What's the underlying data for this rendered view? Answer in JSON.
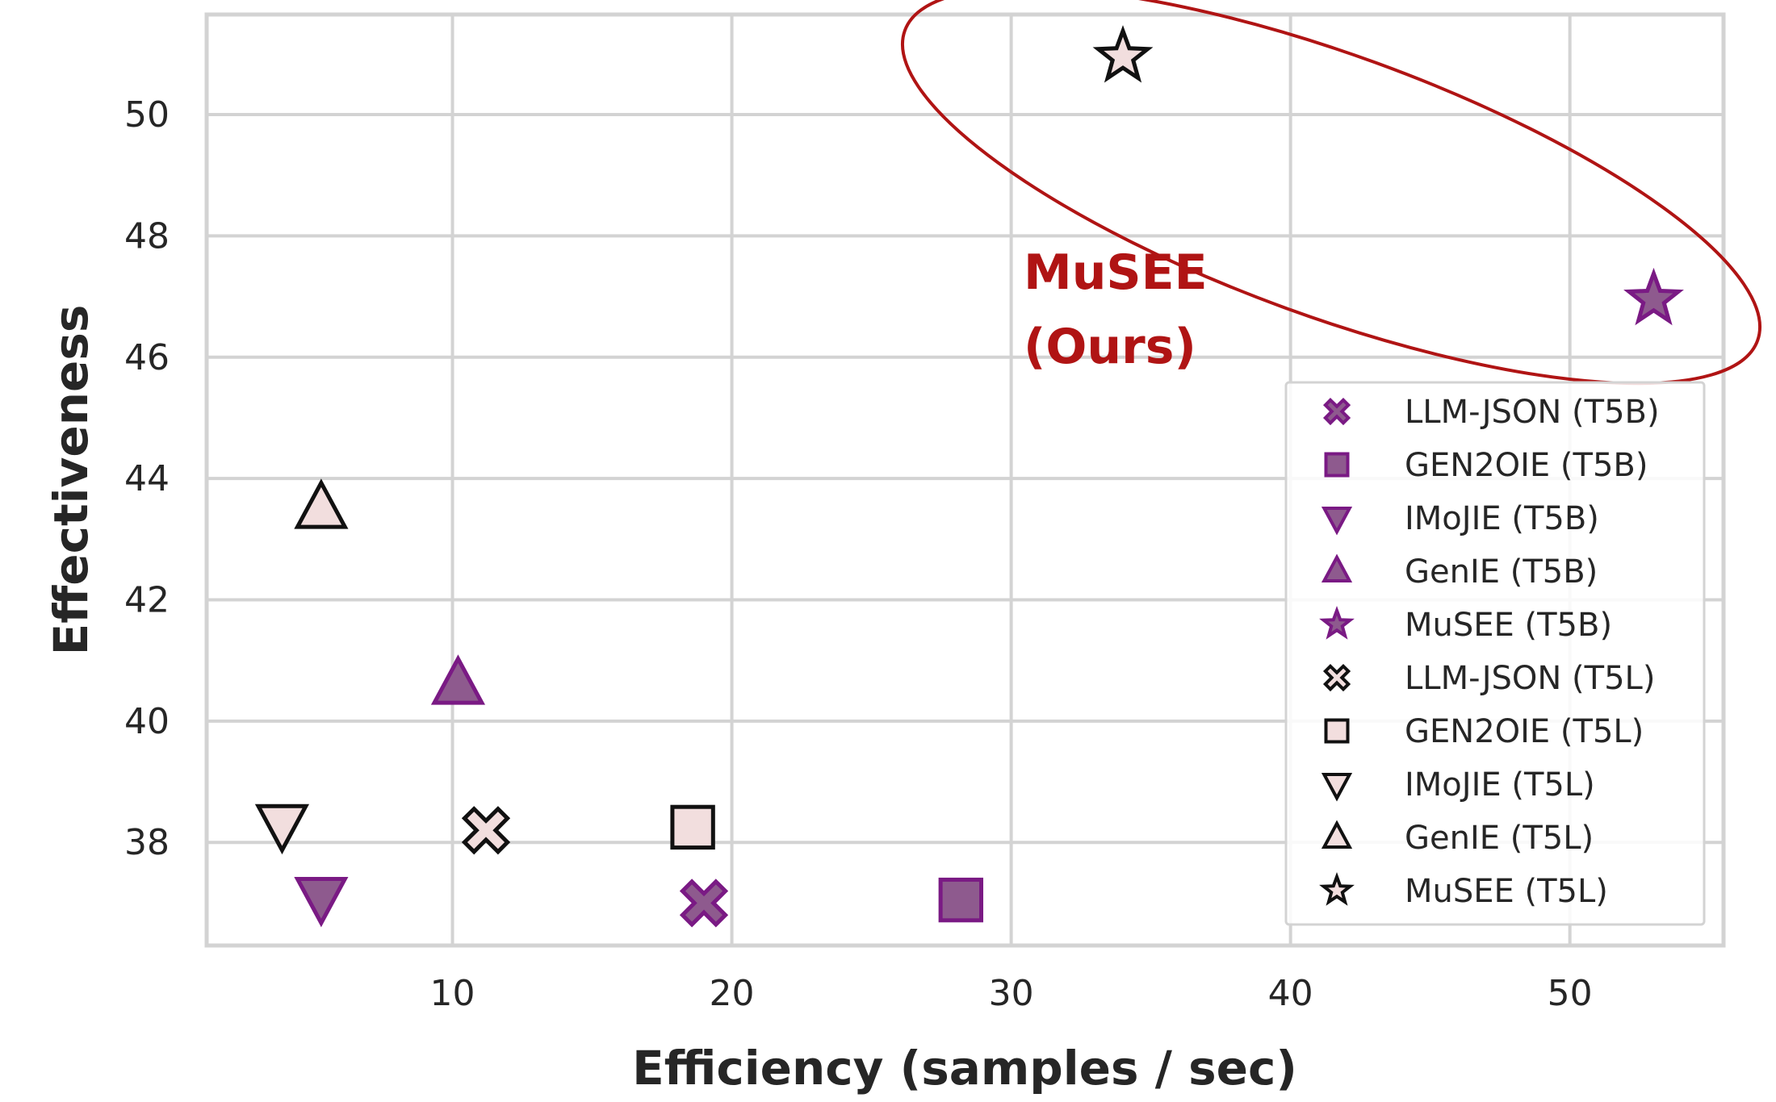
{
  "chart_data": {
    "type": "scatter",
    "xlabel": "Efficiency (samples / sec)",
    "ylabel": "Effectiveness",
    "xlim": [
      1.2,
      55.5
    ],
    "ylim": [
      36.3,
      51.65
    ],
    "xticks": [
      10,
      20,
      30,
      40,
      50
    ],
    "yticks": [
      38,
      40,
      42,
      44,
      46,
      48,
      50
    ],
    "grid": true,
    "legend_position": "right",
    "series": [
      {
        "name": "LLM-JSON (T5B)",
        "marker": "x-cross",
        "color": "#8e5a8e",
        "edge": "#7a1a84",
        "points": [
          {
            "x": 19.0,
            "y": 37.0
          }
        ]
      },
      {
        "name": "GEN2OIE (T5B)",
        "marker": "square",
        "color": "#8e5a8e",
        "edge": "#7a1a84",
        "points": [
          {
            "x": 28.2,
            "y": 37.05
          }
        ]
      },
      {
        "name": "IMoJIE (T5B)",
        "marker": "triangle-down",
        "color": "#8e5a8e",
        "edge": "#7a1a84",
        "points": [
          {
            "x": 5.3,
            "y": 37.1
          }
        ]
      },
      {
        "name": "GenIE (T5B)",
        "marker": "triangle-up",
        "color": "#8e5a8e",
        "edge": "#7a1a84",
        "points": [
          {
            "x": 10.2,
            "y": 40.6
          }
        ]
      },
      {
        "name": "MuSEE (T5B)",
        "marker": "star",
        "color": "#8e5a8e",
        "edge": "#7a1a84",
        "points": [
          {
            "x": 53.0,
            "y": 46.95
          }
        ]
      },
      {
        "name": "LLM-JSON (T5L)",
        "marker": "x-cross",
        "color": "#f2dede",
        "edge": "#111111",
        "points": [
          {
            "x": 11.2,
            "y": 38.2
          }
        ]
      },
      {
        "name": "GEN2OIE (T5L)",
        "marker": "square",
        "color": "#f2dede",
        "edge": "#111111",
        "points": [
          {
            "x": 18.6,
            "y": 38.25
          }
        ]
      },
      {
        "name": "IMoJIE (T5L)",
        "marker": "triangle-down",
        "color": "#f2dede",
        "edge": "#111111",
        "points": [
          {
            "x": 3.9,
            "y": 38.3
          }
        ]
      },
      {
        "name": "GenIE (T5L)",
        "marker": "triangle-up",
        "color": "#f2dede",
        "edge": "#111111",
        "points": [
          {
            "x": 5.3,
            "y": 43.5
          }
        ]
      },
      {
        "name": "MuSEE (T5L)",
        "marker": "star",
        "color": "#f2dede",
        "edge": "#111111",
        "points": [
          {
            "x": 34.0,
            "y": 50.95
          }
        ]
      }
    ],
    "annotation": {
      "lines": [
        "MuSEE",
        "(Ours)"
      ],
      "color": "#b01414",
      "highlight": "ellipse around MuSEE (T5B) and MuSEE (T5L)"
    }
  }
}
